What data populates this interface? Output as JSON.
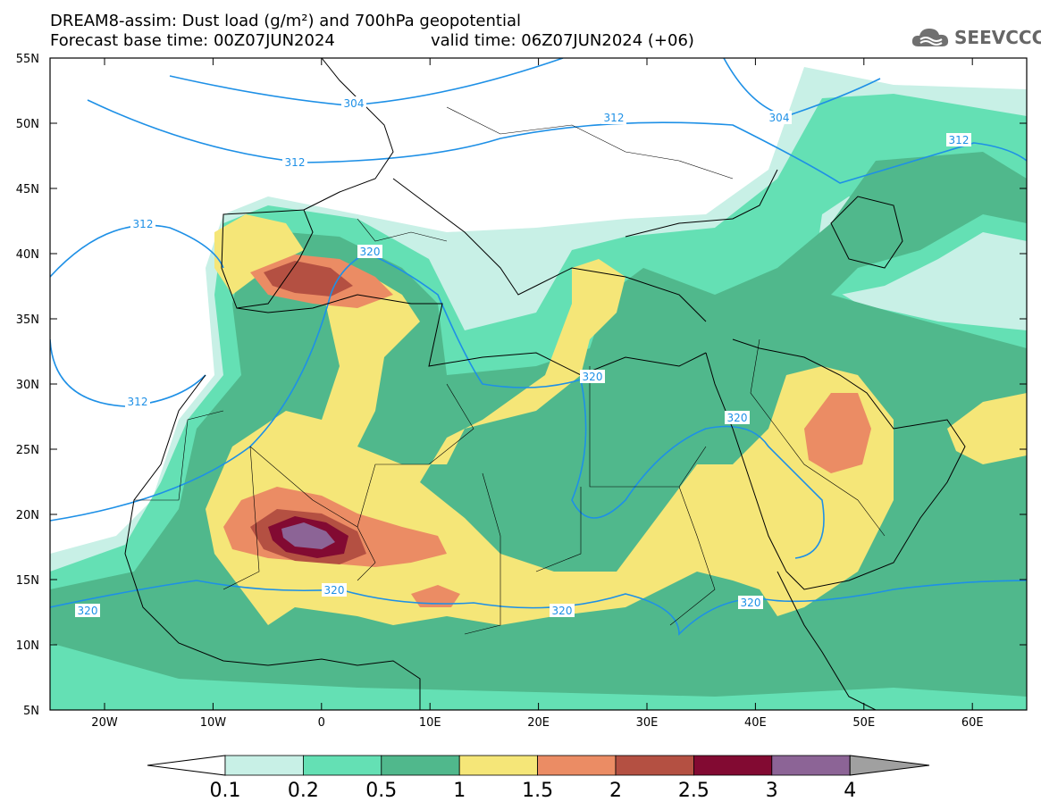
{
  "title": {
    "line1": "DREAM8-assim: Dust load (g/m²) and 700hPa geopotential",
    "line2_left": "Forecast base time: 00Z07JUN2024",
    "line2_right": "valid time: 06Z07JUN2024 (+06)"
  },
  "logo": {
    "text": "SEEVCCC",
    "icon": "cloud-icon"
  },
  "axes": {
    "lon_ticks": [
      "20W",
      "10W",
      "0",
      "10E",
      "20E",
      "30E",
      "40E",
      "50E",
      "60E"
    ],
    "lat_ticks": [
      "55N",
      "50N",
      "45N",
      "40N",
      "35N",
      "30N",
      "25N",
      "20N",
      "15N",
      "10N",
      "5N"
    ]
  },
  "contour_labels": [
    "312",
    "312",
    "304",
    "312",
    "312",
    "312",
    "320",
    "320",
    "320",
    "320",
    "320",
    "320",
    "320",
    "304"
  ],
  "colorbar": {
    "ticks": [
      "0.1",
      "0.2",
      "0.5",
      "1",
      "1.5",
      "2",
      "2.5",
      "3",
      "4"
    ],
    "colors": [
      "#c8f0e6",
      "#64e0b4",
      "#50b88c",
      "#f5e678",
      "#eb8c64",
      "#b45042",
      "#820a32",
      "#8c6496"
    ],
    "under_color": "#ffffff",
    "over_color": "#a0a0a0"
  },
  "colors": {
    "land_line": "#000000",
    "contour": "#1e90e6"
  }
}
